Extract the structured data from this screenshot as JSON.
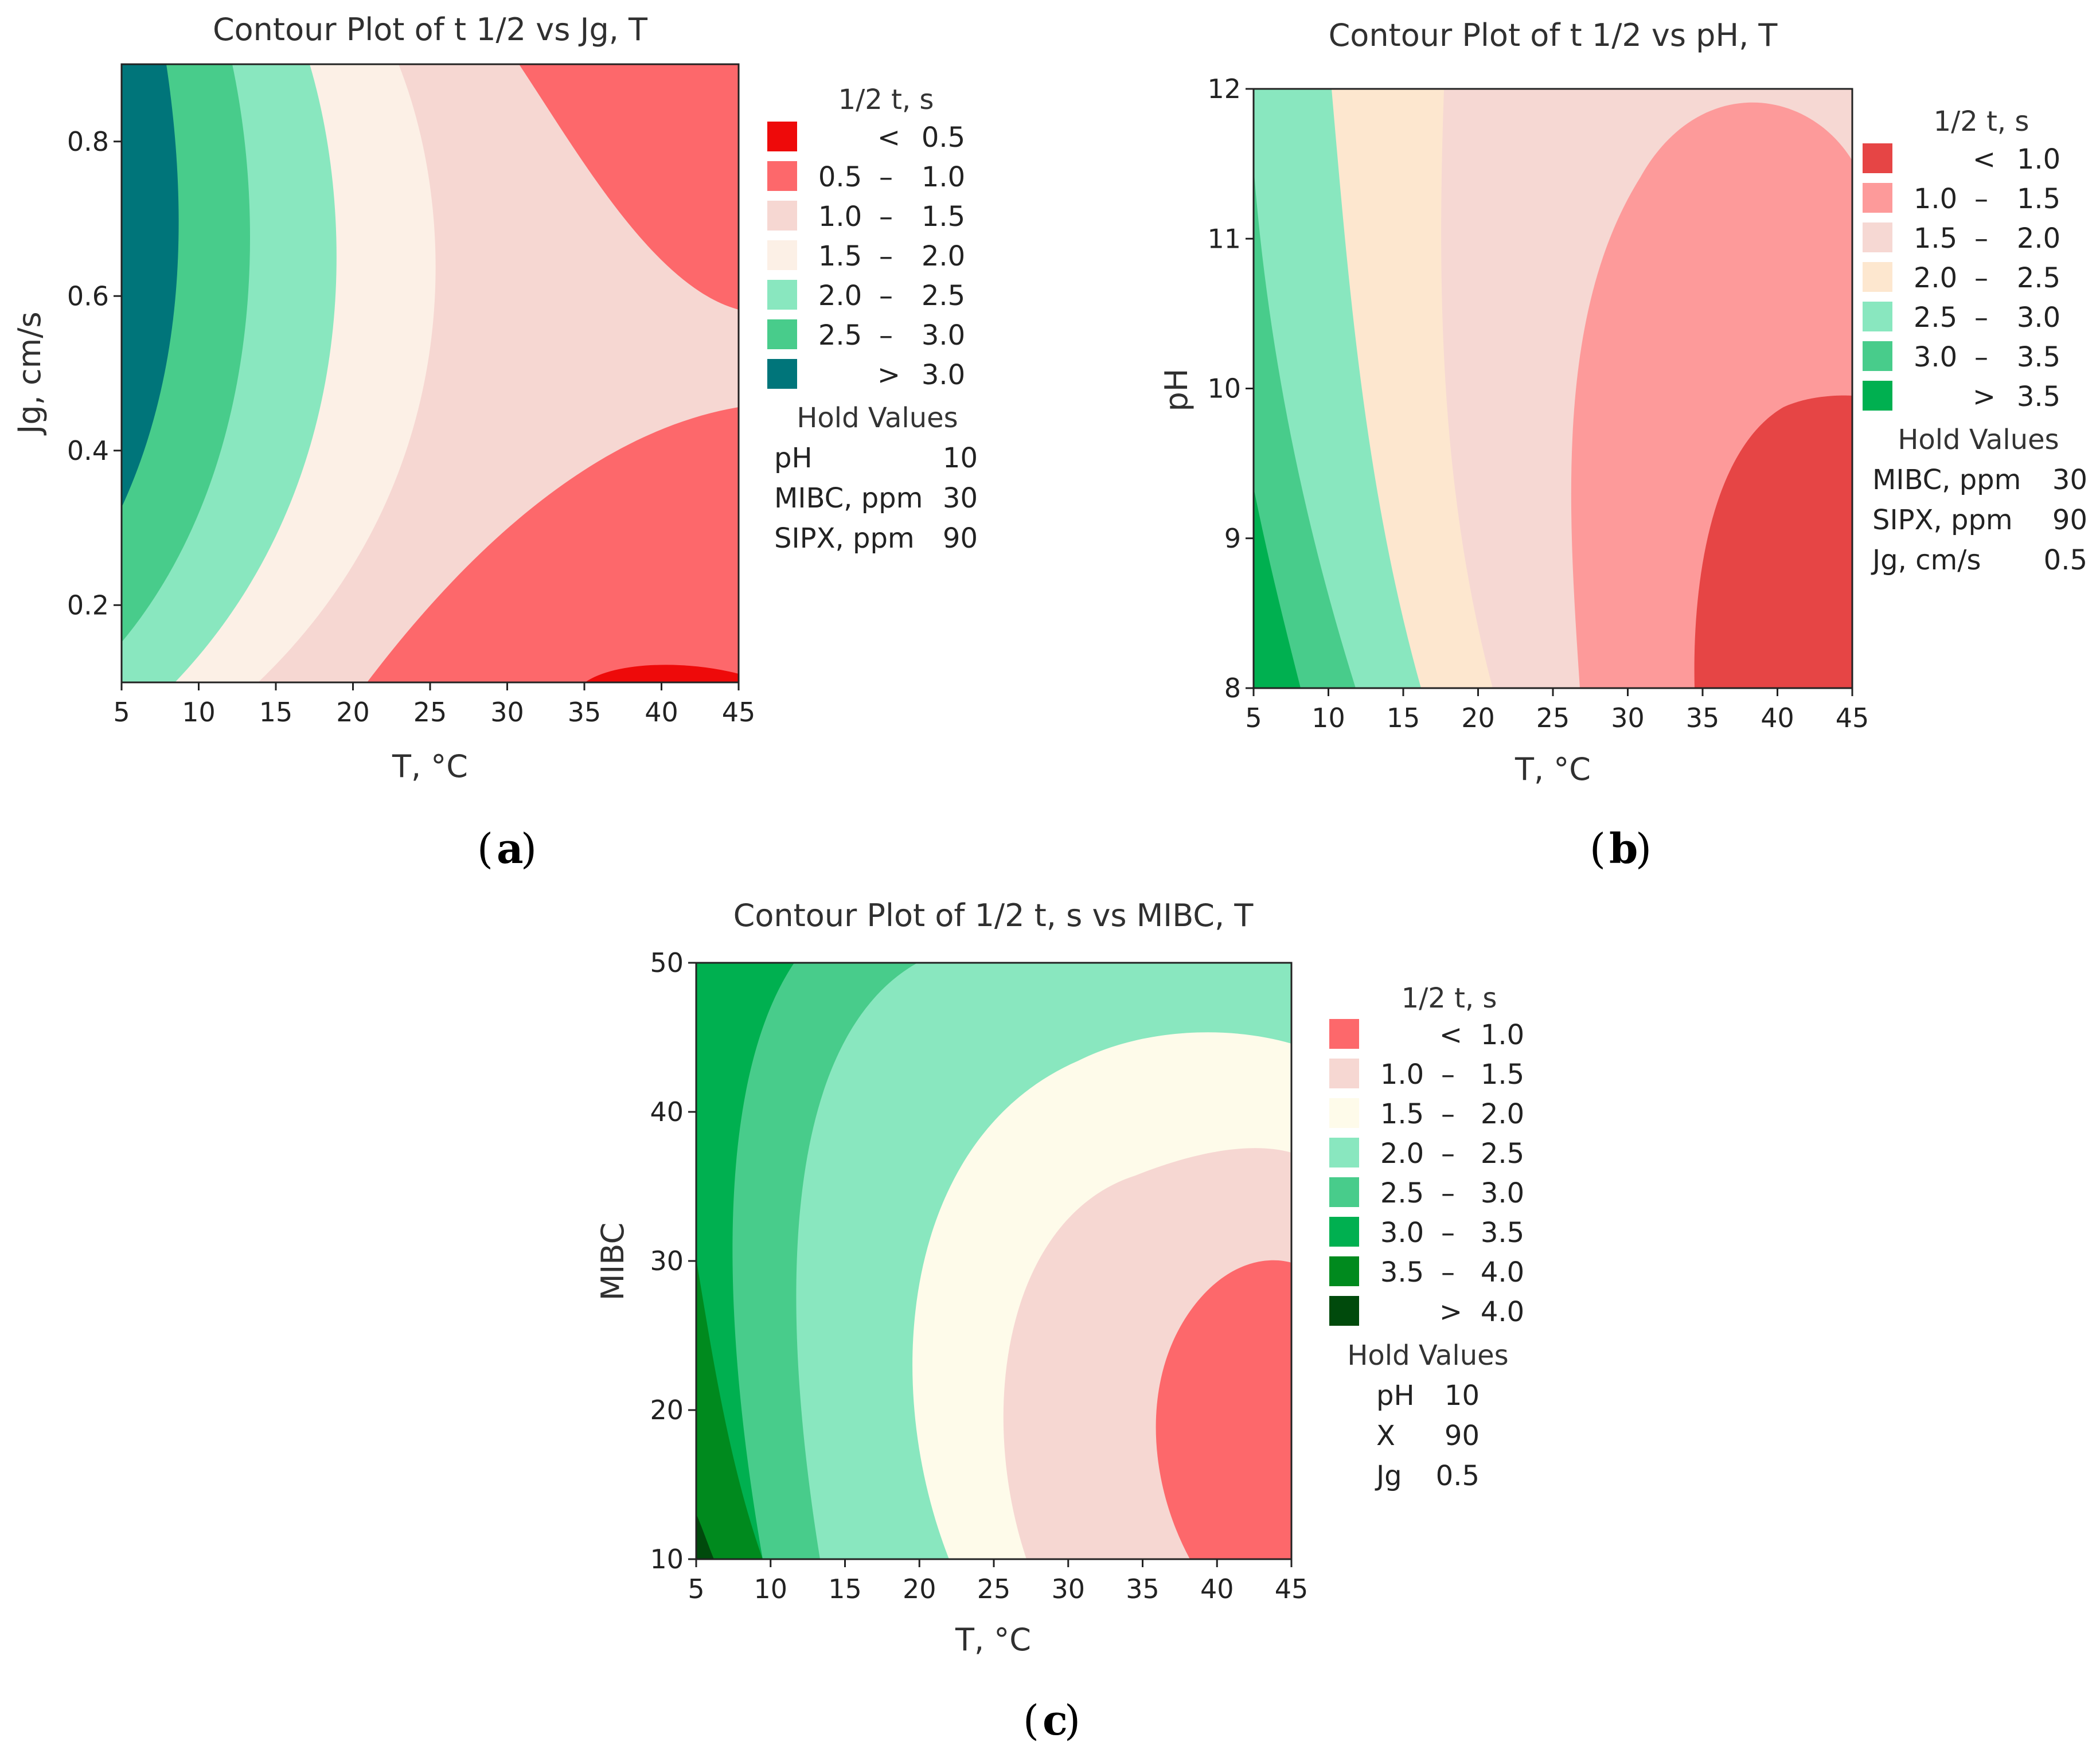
{
  "chart_data": [
    {
      "type": "contour",
      "panel": "a",
      "title": "Contour Plot of t 1/2  vs Jg, T",
      "xlabel": "T, °C",
      "ylabel": "Jg, cm/s",
      "xlim": [
        5,
        45
      ],
      "ylim": [
        0.1,
        0.9
      ],
      "x_ticks": [
        "5",
        "10",
        "15",
        "20",
        "25",
        "30",
        "35",
        "40",
        "45"
      ],
      "y_ticks": [
        "0.2",
        "0.4",
        "0.6",
        "0.8"
      ],
      "legend_title": "1/2 t, s",
      "legend": [
        {
          "lo": "<",
          "hi": "0.5",
          "color": "#ee0a0a"
        },
        {
          "lo": "0.5",
          "hi": "1.0",
          "color": "#fd686b"
        },
        {
          "lo": "1.0",
          "hi": "1.5",
          "color": "#f6d7d2"
        },
        {
          "lo": "1.5",
          "hi": "2.0",
          "color": "#fcf0e6"
        },
        {
          "lo": "2.0",
          "hi": "2.5",
          "color": "#89e7bf"
        },
        {
          "lo": "2.5",
          "hi": "3.0",
          "color": "#48cc8b"
        },
        {
          "lo": ">",
          "hi": "3.0",
          "color": "#00757a"
        }
      ],
      "hold_title": "Hold Values",
      "hold": [
        {
          "name": "pH",
          "value": "10"
        },
        {
          "name": "MIBC, ppm",
          "value": "30"
        },
        {
          "name": "SIPX, ppm",
          "value": "90"
        }
      ],
      "caption": "a"
    },
    {
      "type": "contour",
      "panel": "b",
      "title": "Contour Plot of t 1/2 vs pH, T",
      "xlabel": "T, °C",
      "ylabel": "pH",
      "xlim": [
        5,
        45
      ],
      "ylim": [
        8,
        12
      ],
      "x_ticks": [
        "5",
        "10",
        "15",
        "20",
        "25",
        "30",
        "35",
        "40",
        "45"
      ],
      "y_ticks": [
        "8",
        "9",
        "10",
        "11",
        "12"
      ],
      "legend_title": "1/2 t, s",
      "legend": [
        {
          "lo": "<",
          "hi": "1.0",
          "color": "#e64545"
        },
        {
          "lo": "1.0",
          "hi": "1.5",
          "color": "#fd9a9a"
        },
        {
          "lo": "1.5",
          "hi": "2.0",
          "color": "#f6d8d3"
        },
        {
          "lo": "2.0",
          "hi": "2.5",
          "color": "#fde7cf"
        },
        {
          "lo": "2.5",
          "hi": "3.0",
          "color": "#89e7bf"
        },
        {
          "lo": "3.0",
          "hi": "3.5",
          "color": "#48cc8b"
        },
        {
          "lo": ">",
          "hi": "3.5",
          "color": "#00b050"
        }
      ],
      "hold_title": "Hold Values",
      "hold": [
        {
          "name": "MIBC, ppm",
          "value": "30"
        },
        {
          "name": "SIPX, ppm",
          "value": "90"
        },
        {
          "name": "Jg, cm/s",
          "value": "0.5"
        }
      ],
      "caption": "b"
    },
    {
      "type": "contour",
      "panel": "c",
      "title": "Contour Plot of 1/2 t, s vs MIBC, T",
      "xlabel": "T, °C",
      "ylabel": "MIBC",
      "xlim": [
        5,
        45
      ],
      "ylim": [
        10,
        50
      ],
      "x_ticks": [
        "5",
        "10",
        "15",
        "20",
        "25",
        "30",
        "35",
        "40",
        "45"
      ],
      "y_ticks": [
        "10",
        "20",
        "30",
        "40",
        "50"
      ],
      "legend_title": "1/2 t, s",
      "legend": [
        {
          "lo": "<",
          "hi": "1.0",
          "color": "#fd686b"
        },
        {
          "lo": "1.0",
          "hi": "1.5",
          "color": "#f6d7d2"
        },
        {
          "lo": "1.5",
          "hi": "2.0",
          "color": "#fefbea"
        },
        {
          "lo": "2.0",
          "hi": "2.5",
          "color": "#89e7bf"
        },
        {
          "lo": "2.5",
          "hi": "3.0",
          "color": "#48cc8b"
        },
        {
          "lo": "3.0",
          "hi": "3.5",
          "color": "#00b050"
        },
        {
          "lo": "3.5",
          "hi": "4.0",
          "color": "#008a1e"
        },
        {
          "lo": ">",
          "hi": "4.0",
          "color": "#004a0c"
        }
      ],
      "hold_title": "Hold Values",
      "hold": [
        {
          "name": "pH",
          "value": "10"
        },
        {
          "name": "X",
          "value": "90"
        },
        {
          "name": "Jg",
          "value": "0.5"
        }
      ],
      "caption": "c"
    }
  ]
}
